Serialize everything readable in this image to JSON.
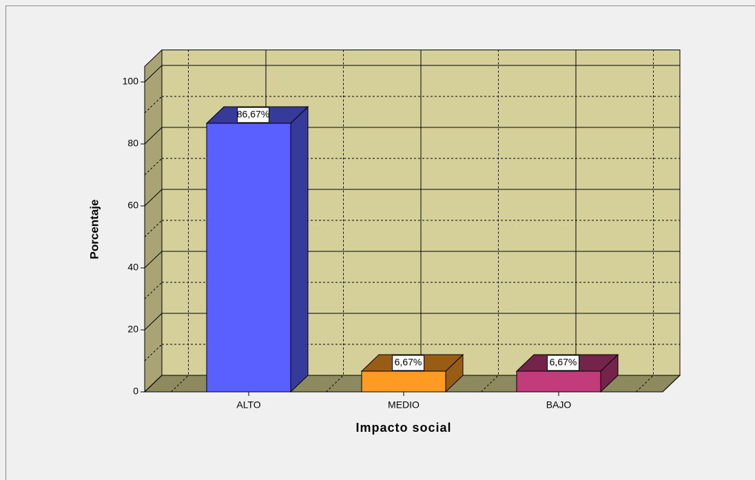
{
  "chart_data": {
    "type": "bar3d",
    "xlabel": "Impacto social",
    "ylabel": "Porcentaje",
    "categories": [
      "ALTO",
      "MEDIO",
      "BAJO"
    ],
    "values": [
      86.67,
      6.67,
      6.67
    ],
    "value_labels": [
      "86,67%",
      "6,67%",
      "6,67%"
    ],
    "colors": [
      "#5a60ff",
      "#ff9a22",
      "#c23c7c"
    ],
    "ylim": [
      0,
      105
    ],
    "yticks": [
      0,
      20,
      40,
      60,
      80,
      100
    ],
    "yminor": [
      10,
      30,
      50,
      70,
      90
    ],
    "grid": true
  }
}
